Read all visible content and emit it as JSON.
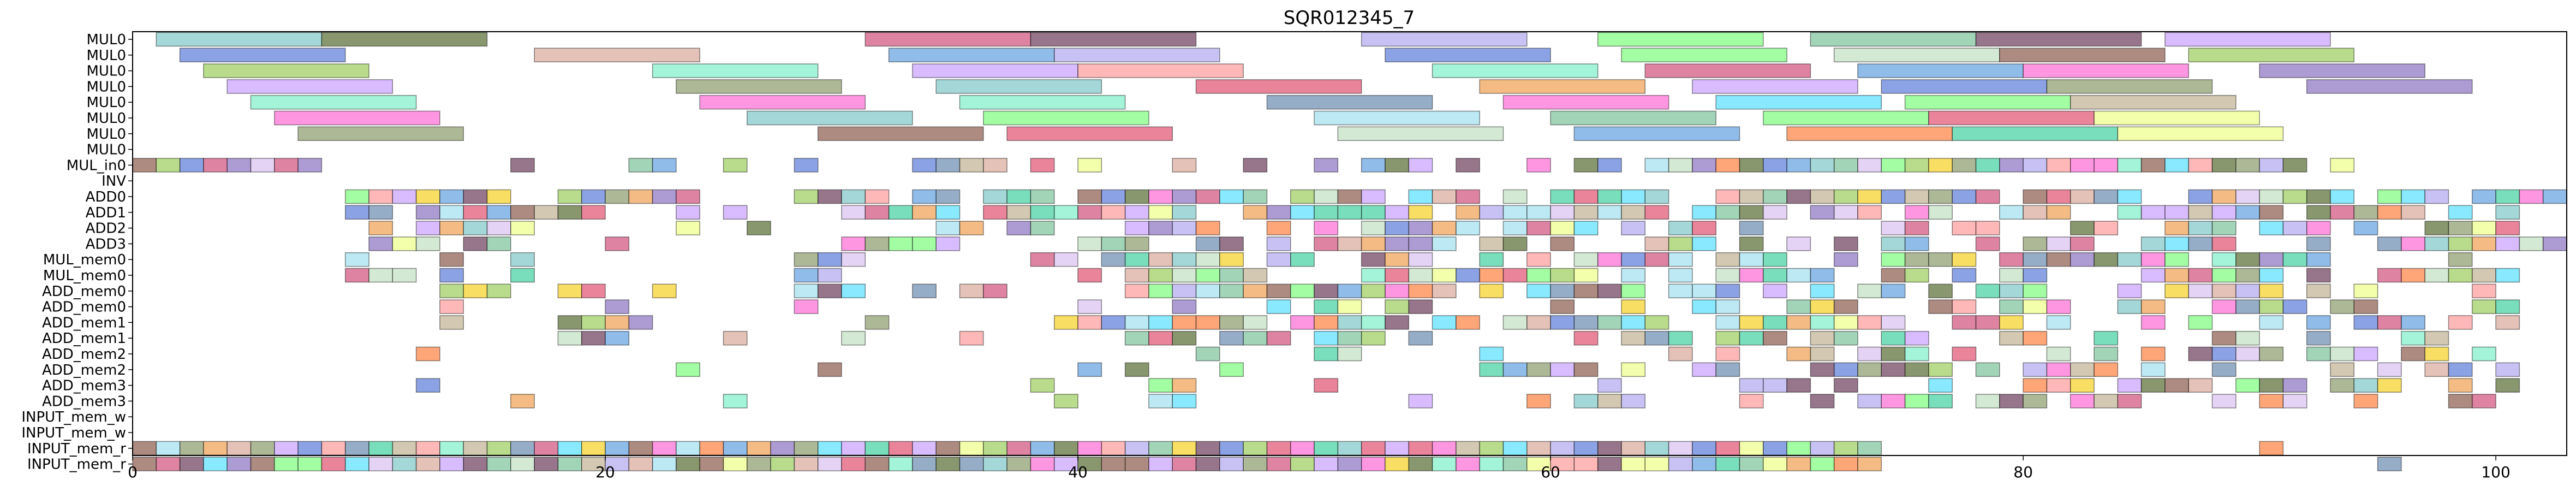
{
  "chart_data": {
    "type": "gantt",
    "title": "SQR012345_7",
    "xlabel": "",
    "ylabel": "",
    "xlim": [
      0,
      103
    ],
    "grid": false,
    "legend": "none",
    "x_ticks": [
      0,
      20,
      40,
      60,
      80,
      100
    ],
    "rows": [
      "MUL0",
      "MUL0",
      "MUL0",
      "MUL0",
      "MUL0",
      "MUL0",
      "MUL0",
      "MUL0",
      "MUL_in0",
      "INV",
      "ADD0",
      "ADD1",
      "ADD2",
      "ADD3",
      "MUL_mem0",
      "MUL_mem0",
      "ADD_mem0",
      "ADD_mem0",
      "ADD_mem1",
      "ADD_mem1",
      "ADD_mem2",
      "ADD_mem2",
      "ADD_mem3",
      "ADD_mem3",
      "INPUT_mem_w",
      "INPUT_mem_w",
      "INPUT_mem_r",
      "INPUT_mem_r"
    ],
    "colors": [
      "#7ec8c8",
      "#556b2f",
      "#d0507a",
      "#6b3a5a",
      "#b0a8f0",
      "#7cfc7c",
      "#7ac29a",
      "#8b5a4a",
      "#9acd5a",
      "#c8a0ff",
      "#5a7ad8",
      "#d8a898",
      "#7cf0c8",
      "#ff9a9a",
      "#e05070",
      "#6a8ab0",
      "#f0a050",
      "#ff6ad5",
      "#55e0ff",
      "#c0b090",
      "#f0ff88",
      "#8a70c0",
      "#8a9a6a",
      "#5fa0e0",
      "#c0e0c0",
      "#d9c0f0",
      "#f5d020",
      "#a0e0f0",
      "#40d0a0",
      "#ff8040"
    ],
    "tasks": [
      {
        "row": 0,
        "start": 1,
        "end": 8,
        "c": 0
      },
      {
        "row": 0,
        "start": 8,
        "end": 15,
        "c": 1
      },
      {
        "row": 0,
        "start": 31,
        "end": 38,
        "c": 2
      },
      {
        "row": 0,
        "start": 38,
        "end": 45,
        "c": 3
      },
      {
        "row": 0,
        "start": 52,
        "end": 59,
        "c": 4
      },
      {
        "row": 0,
        "start": 62,
        "end": 69,
        "c": 5
      },
      {
        "row": 0,
        "start": 71,
        "end": 78,
        "c": 6
      },
      {
        "row": 0,
        "start": 78,
        "end": 85,
        "c": 3
      },
      {
        "row": 0,
        "start": 86,
        "end": 93,
        "c": 9
      },
      {
        "row": 1,
        "start": 2,
        "end": 9,
        "c": 10
      },
      {
        "row": 1,
        "start": 17,
        "end": 24,
        "c": 11
      },
      {
        "row": 1,
        "start": 32,
        "end": 39,
        "c": 23
      },
      {
        "row": 1,
        "start": 39,
        "end": 46,
        "c": 4
      },
      {
        "row": 1,
        "start": 53,
        "end": 60,
        "c": 10
      },
      {
        "row": 1,
        "start": 63,
        "end": 70,
        "c": 5
      },
      {
        "row": 1,
        "start": 72,
        "end": 79,
        "c": 24
      },
      {
        "row": 1,
        "start": 79,
        "end": 86,
        "c": 7
      },
      {
        "row": 1,
        "start": 87,
        "end": 94,
        "c": 8
      },
      {
        "row": 2,
        "start": 3,
        "end": 10,
        "c": 8
      },
      {
        "row": 2,
        "start": 22,
        "end": 29,
        "c": 12
      },
      {
        "row": 2,
        "start": 33,
        "end": 40,
        "c": 9
      },
      {
        "row": 2,
        "start": 40,
        "end": 47,
        "c": 13
      },
      {
        "row": 2,
        "start": 55,
        "end": 62,
        "c": 12
      },
      {
        "row": 2,
        "start": 64,
        "end": 71,
        "c": 2
      },
      {
        "row": 2,
        "start": 73,
        "end": 80,
        "c": 23
      },
      {
        "row": 2,
        "start": 80,
        "end": 87,
        "c": 17
      },
      {
        "row": 2,
        "start": 90,
        "end": 97,
        "c": 21
      },
      {
        "row": 3,
        "start": 4,
        "end": 11,
        "c": 9
      },
      {
        "row": 3,
        "start": 23,
        "end": 30,
        "c": 22
      },
      {
        "row": 3,
        "start": 34,
        "end": 41,
        "c": 0
      },
      {
        "row": 3,
        "start": 45,
        "end": 52,
        "c": 14
      },
      {
        "row": 3,
        "start": 57,
        "end": 64,
        "c": 16
      },
      {
        "row": 3,
        "start": 66,
        "end": 73,
        "c": 9
      },
      {
        "row": 3,
        "start": 74,
        "end": 81,
        "c": 10
      },
      {
        "row": 3,
        "start": 81,
        "end": 88,
        "c": 22
      },
      {
        "row": 3,
        "start": 92,
        "end": 99,
        "c": 21
      },
      {
        "row": 4,
        "start": 5,
        "end": 12,
        "c": 12
      },
      {
        "row": 4,
        "start": 24,
        "end": 31,
        "c": 17
      },
      {
        "row": 4,
        "start": 35,
        "end": 42,
        "c": 12
      },
      {
        "row": 4,
        "start": 48,
        "end": 55,
        "c": 15
      },
      {
        "row": 4,
        "start": 58,
        "end": 65,
        "c": 17
      },
      {
        "row": 4,
        "start": 67,
        "end": 74,
        "c": 18
      },
      {
        "row": 4,
        "start": 75,
        "end": 82,
        "c": 5
      },
      {
        "row": 4,
        "start": 82,
        "end": 89,
        "c": 19
      },
      {
        "row": 5,
        "start": 6,
        "end": 13,
        "c": 17
      },
      {
        "row": 5,
        "start": 26,
        "end": 33,
        "c": 0
      },
      {
        "row": 5,
        "start": 36,
        "end": 43,
        "c": 5
      },
      {
        "row": 5,
        "start": 50,
        "end": 57,
        "c": 27
      },
      {
        "row": 5,
        "start": 60,
        "end": 67,
        "c": 6
      },
      {
        "row": 5,
        "start": 69,
        "end": 76,
        "c": 5
      },
      {
        "row": 5,
        "start": 76,
        "end": 83,
        "c": 14
      },
      {
        "row": 5,
        "start": 83,
        "end": 90,
        "c": 20
      },
      {
        "row": 6,
        "start": 7,
        "end": 14,
        "c": 22
      },
      {
        "row": 6,
        "start": 29,
        "end": 36,
        "c": 7
      },
      {
        "row": 6,
        "start": 37,
        "end": 44,
        "c": 14
      },
      {
        "row": 6,
        "start": 51,
        "end": 58,
        "c": 24
      },
      {
        "row": 6,
        "start": 61,
        "end": 68,
        "c": 23
      },
      {
        "row": 6,
        "start": 70,
        "end": 77,
        "c": 29
      },
      {
        "row": 6,
        "start": 77,
        "end": 84,
        "c": 28
      },
      {
        "row": 6,
        "start": 84,
        "end": 91,
        "c": 20
      }
    ],
    "unit_rows": [
      {
        "row": 8,
        "ranges": [
          [
            0,
            8
          ],
          [
            16,
            17
          ],
          [
            21,
            23
          ],
          [
            25,
            26
          ],
          [
            28,
            29
          ],
          [
            33,
            37
          ],
          [
            38,
            39
          ],
          [
            40,
            41
          ],
          [
            44,
            45
          ],
          [
            47,
            48
          ],
          [
            50,
            51
          ],
          [
            52,
            55
          ],
          [
            56,
            57
          ],
          [
            59,
            60
          ],
          [
            61,
            63
          ],
          [
            64,
            92
          ],
          [
            93,
            94
          ]
        ],
        "density": 1.0,
        "seed": 11
      },
      {
        "row": 10,
        "ranges": [
          [
            9,
            24
          ],
          [
            28,
            103
          ]
        ],
        "density": 0.75,
        "seed": 21
      },
      {
        "row": 11,
        "ranges": [
          [
            9,
            26
          ],
          [
            30,
            101
          ]
        ],
        "density": 0.7,
        "seed": 23
      },
      {
        "row": 12,
        "ranges": [
          [
            10,
            17
          ],
          [
            22,
            29
          ],
          [
            33,
            39
          ],
          [
            42,
            102
          ]
        ],
        "density": 0.6,
        "seed": 25
      },
      {
        "row": 13,
        "ranges": [
          [
            10,
            17
          ],
          [
            20,
            21
          ],
          [
            29,
            35
          ],
          [
            40,
            103
          ]
        ],
        "density": 0.6,
        "seed": 27
      },
      {
        "row": 14,
        "ranges": [
          [
            9,
            17
          ],
          [
            28,
            32
          ],
          [
            38,
            100
          ]
        ],
        "density": 0.65,
        "seed": 29
      },
      {
        "row": 15,
        "ranges": [
          [
            9,
            17
          ],
          [
            28,
            31
          ],
          [
            40,
            101
          ]
        ],
        "density": 0.65,
        "seed": 31
      },
      {
        "row": 16,
        "ranges": [
          [
            13,
            16
          ],
          [
            18,
            23
          ],
          [
            27,
            37
          ],
          [
            40,
            100
          ]
        ],
        "density": 0.6,
        "seed": 33
      },
      {
        "row": 17,
        "ranges": [
          [
            13,
            16
          ],
          [
            20,
            21
          ],
          [
            28,
            31
          ],
          [
            39,
            101
          ]
        ],
        "density": 0.6,
        "seed": 35
      },
      {
        "row": 18,
        "ranges": [
          [
            13,
            14
          ],
          [
            18,
            23
          ],
          [
            30,
            32
          ],
          [
            39,
            101
          ]
        ],
        "density": 0.55,
        "seed": 37
      },
      {
        "row": 19,
        "ranges": [
          [
            18,
            21
          ],
          [
            25,
            26
          ],
          [
            30,
            31
          ],
          [
            35,
            36
          ],
          [
            39,
            101
          ]
        ],
        "density": 0.55,
        "seed": 39
      },
      {
        "row": 20,
        "ranges": [
          [
            12,
            13
          ],
          [
            28,
            29
          ],
          [
            42,
            43
          ],
          [
            45,
            46
          ],
          [
            50,
            53
          ],
          [
            57,
            101
          ]
        ],
        "density": 0.55,
        "seed": 41
      },
      {
        "row": 21,
        "ranges": [
          [
            23,
            24
          ],
          [
            29,
            30
          ],
          [
            40,
            43
          ],
          [
            46,
            47
          ],
          [
            51,
            52
          ],
          [
            54,
            55
          ],
          [
            57,
            101
          ]
        ],
        "density": 0.55,
        "seed": 43
      },
      {
        "row": 22,
        "ranges": [
          [
            12,
            13
          ],
          [
            19,
            20
          ],
          [
            38,
            39
          ],
          [
            42,
            45
          ],
          [
            47,
            48
          ],
          [
            50,
            51
          ],
          [
            58,
            101
          ]
        ],
        "density": 0.55,
        "seed": 45
      },
      {
        "row": 23,
        "ranges": [
          [
            16,
            17
          ],
          [
            25,
            26
          ],
          [
            30,
            31
          ],
          [
            38,
            40
          ],
          [
            43,
            45
          ],
          [
            49,
            50
          ],
          [
            53,
            55
          ],
          [
            59,
            101
          ]
        ],
        "density": 0.6,
        "seed": 47
      },
      {
        "row": 26,
        "ranges": [
          [
            0,
            74
          ],
          [
            90,
            91
          ]
        ],
        "density": 1.0,
        "seed": 51
      },
      {
        "row": 27,
        "ranges": [
          [
            0,
            74
          ],
          [
            95,
            96
          ]
        ],
        "density": 1.0,
        "seed": 53
      }
    ]
  }
}
